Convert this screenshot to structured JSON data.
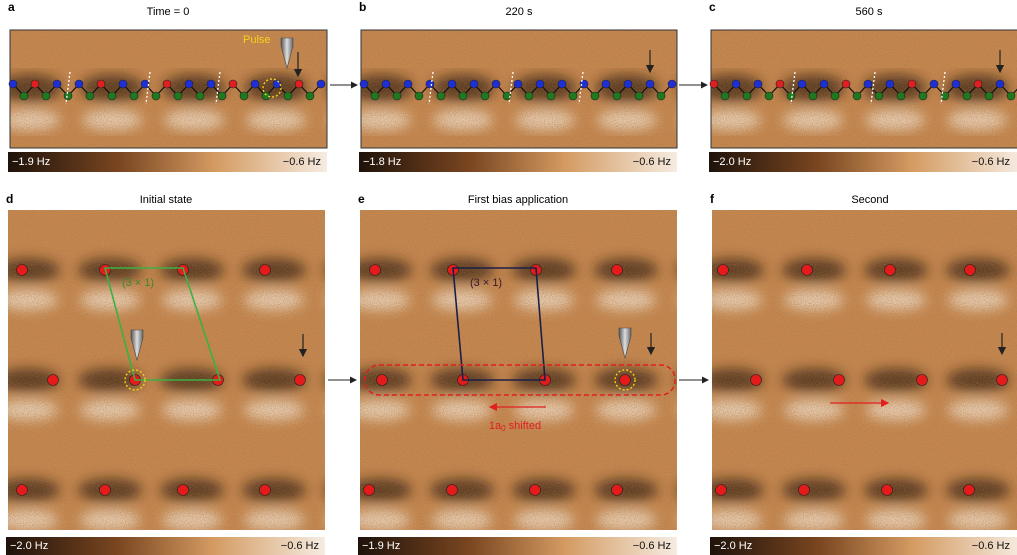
{
  "panels": [
    {
      "letter": "a",
      "title": "Time = 0",
      "colorbar_min": "−1.9 Hz",
      "colorbar_max": "−0.6 Hz",
      "annotation": "Pulse"
    },
    {
      "letter": "b",
      "title": "220 s",
      "colorbar_min": "−1.8 Hz",
      "colorbar_max": "−0.6 Hz"
    },
    {
      "letter": "c",
      "title": "560 s",
      "colorbar_min": "−2.0 Hz",
      "colorbar_max": "−0.6 Hz"
    },
    {
      "letter": "d",
      "title": "Initial state",
      "colorbar_min": "−2.0 Hz",
      "colorbar_max": "−0.6 Hz",
      "annotation": "(3 × 1)"
    },
    {
      "letter": "e",
      "title": "First bias application",
      "colorbar_min": "−1.9 Hz",
      "colorbar_max": "−0.6 Hz",
      "annotation": "(3 × 1)",
      "shift_label": {
        "main": "1a",
        "sub": "0",
        "rest": " shifted"
      }
    },
    {
      "letter": "f",
      "title": "Second",
      "colorbar_min": "−2.0 Hz",
      "colorbar_max": "−0.6 Hz"
    }
  ]
}
